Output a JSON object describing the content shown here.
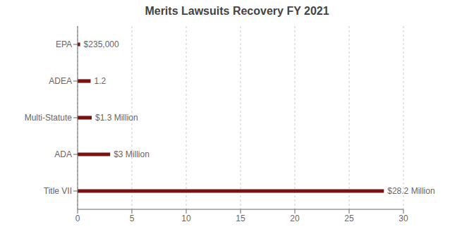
{
  "chart_data": {
    "type": "bar",
    "title": "Merits Lawsuits Recovery FY 2021",
    "orientation": "horizontal",
    "categories": [
      "Title VII",
      "ADA",
      "Multi-Statute",
      "ADEA",
      "EPA"
    ],
    "values": [
      28.2,
      3.0,
      1.3,
      1.2,
      0.235
    ],
    "value_labels": [
      "$28.2 Million",
      "$3 Million",
      "$1.3 Million",
      "1.2",
      "$235,000"
    ],
    "data_labels": true,
    "color": "#7B1212",
    "xlim": [
      0,
      30
    ],
    "xticks": [
      0,
      5,
      10,
      15,
      20,
      25,
      30
    ],
    "grid": true
  }
}
